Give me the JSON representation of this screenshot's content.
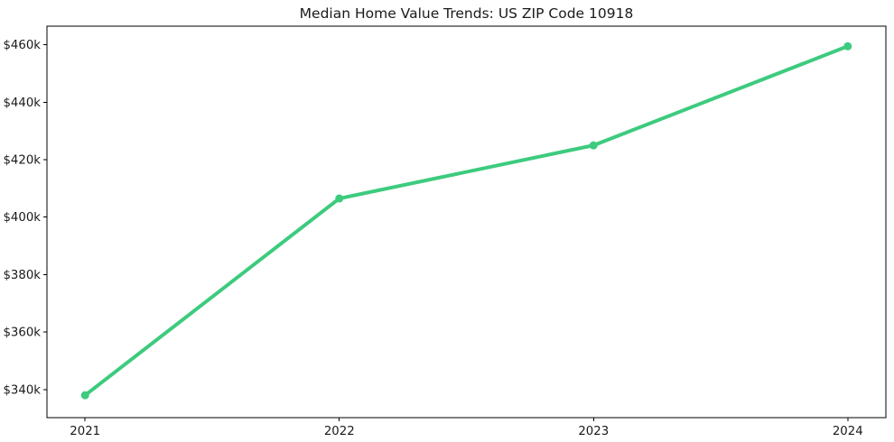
{
  "chart": {
    "title": "Median Home Value Trends: US ZIP Code 10918"
  },
  "chart_data": {
    "type": "line",
    "title": "Median Home Value Trends: US ZIP Code 10918",
    "x": [
      2021,
      2022,
      2023,
      2024
    ],
    "xtick_labels": [
      "2021",
      "2022",
      "2023",
      "2024"
    ],
    "series": [
      {
        "name": "Median Home Value",
        "values": [
          338000,
          406500,
          425000,
          459500
        ],
        "color": "#3dcb7e",
        "marker": "circle"
      }
    ],
    "xlabel": "",
    "ylabel": "",
    "xlim": [
      2020.85,
      2024.15
    ],
    "ylim": [
      330200,
      466500
    ],
    "yticks": [
      340000,
      360000,
      380000,
      400000,
      420000,
      440000,
      460000
    ],
    "ytick_labels": [
      "$340k",
      "$360k",
      "$380k",
      "$400k",
      "$420k",
      "$440k",
      "$460k"
    ],
    "grid": false,
    "legend": "none",
    "background": "#ffffff",
    "spine_color": "#000000",
    "tick_label_color": "#1a1a1a"
  }
}
